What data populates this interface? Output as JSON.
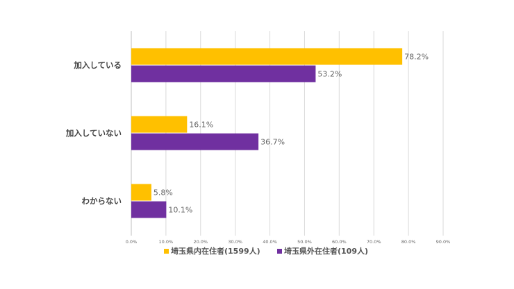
{
  "chart_data": {
    "type": "bar",
    "orientation": "horizontal",
    "categories": [
      "加入している",
      "加入していない",
      "わからない"
    ],
    "series": [
      {
        "name": "埼玉県内在住者(1599人)",
        "values": [
          78.2,
          16.1,
          5.8
        ],
        "color": "#FFC000"
      },
      {
        "name": "埼玉県外在住者(109人)",
        "values": [
          53.2,
          36.7,
          10.1
        ],
        "color": "#7030A0"
      }
    ],
    "data_labels": [
      [
        "78.2%",
        "16.1%",
        "5.8%"
      ],
      [
        "53.2%",
        "36.7%",
        "10.1%"
      ]
    ],
    "x_ticks": [
      "0.0%",
      "10.0%",
      "20.0%",
      "30.0%",
      "40.0%",
      "50.0%",
      "60.0%",
      "70.0%",
      "80.0%",
      "90.0%"
    ],
    "xlim": [
      0,
      90
    ],
    "grid": true,
    "legend_position": "bottom",
    "title": "",
    "xlabel": "",
    "ylabel": ""
  }
}
